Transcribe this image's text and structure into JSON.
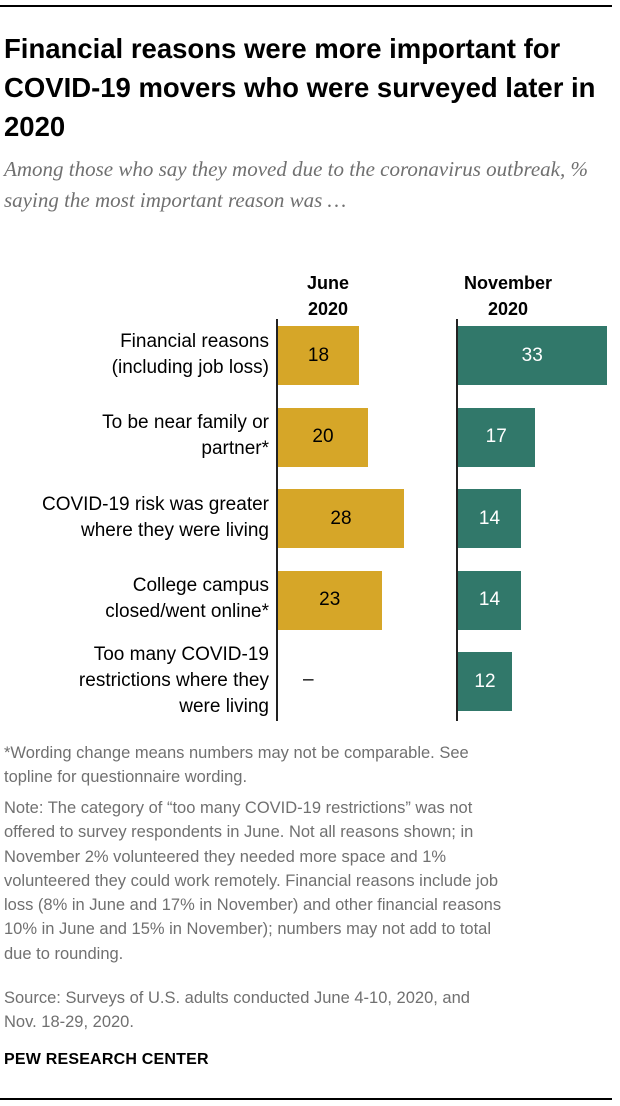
{
  "header": {
    "title": "Financial reasons were more important for COVID-19 movers who were surveyed later in 2020",
    "subtitle": "Among those who say they moved due to the coronavirus outbreak, % saying the most important reason was …"
  },
  "chart_data": {
    "type": "bar",
    "orientation": "horizontal",
    "columns": [
      {
        "name_lines": [
          "June",
          "2020"
        ]
      },
      {
        "name_lines": [
          "November",
          "2020"
        ]
      }
    ],
    "categories": [
      {
        "lines": [
          "Financial reasons",
          "(including job loss)"
        ]
      },
      {
        "lines": [
          "To be near family or",
          "partner*"
        ]
      },
      {
        "lines": [
          "COVID-19 risk was greater",
          "where they were living"
        ]
      },
      {
        "lines": [
          "College campus",
          "closed/went online*"
        ]
      },
      {
        "lines": [
          "Too many COVID-19",
          "restrictions where they",
          "were living"
        ]
      }
    ],
    "series": [
      {
        "name": "June 2020",
        "color": "#d6a628",
        "values": [
          18,
          20,
          28,
          23,
          null
        ],
        "labels": [
          "18",
          "20",
          "28",
          "23",
          "–"
        ]
      },
      {
        "name": "November 2020",
        "color": "#31786a",
        "values": [
          33,
          17,
          14,
          14,
          12
        ],
        "labels": [
          "33",
          "17",
          "14",
          "14",
          "12"
        ]
      }
    ],
    "grid": false,
    "legend": "none"
  },
  "notes": {
    "asterisk_lines": [
      "*Wording change means numbers may not be comparable. See",
      "topline for questionnaire wording."
    ],
    "note_lines": [
      "Note: The category of “too many COVID-19 restrictions” was not",
      "offered to survey respondents in June. Not all reasons shown; in",
      "November 2% volunteered they needed more space and 1%",
      "volunteered they could work remotely. Financial reasons include job",
      "loss (8% in June and 17% in November) and other financial reasons",
      "10% in June and 15% in November); numbers may not add to total",
      "due to rounding."
    ],
    "source_lines": [
      "Source: Surveys of U.S. adults conducted June 4-10, 2020, and",
      "Nov. 18-29, 2020."
    ]
  },
  "footer": {
    "brand": "PEW RESEARCH CENTER"
  }
}
